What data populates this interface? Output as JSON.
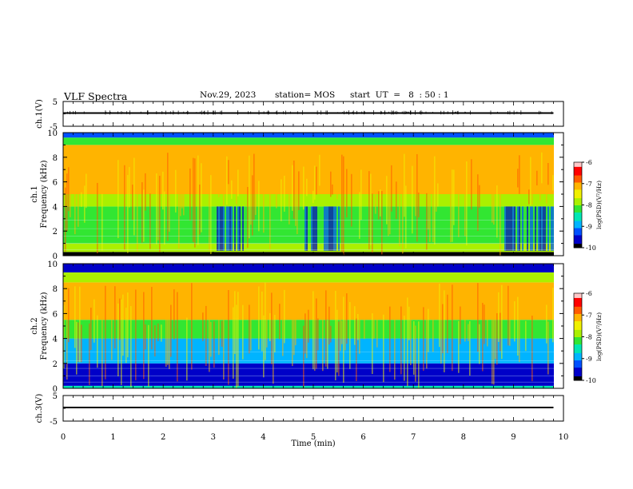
{
  "header": {
    "title": "VLF Spectra",
    "date": "Nov.29, 2023",
    "station": "station= MOS",
    "start": "start  UT  =   8  : 50 : 1"
  },
  "colors": {
    "black": "#000000",
    "colormap": [
      "#000000",
      "#0000c8",
      "#0050ff",
      "#00b4ff",
      "#00e6b4",
      "#32e632",
      "#aaf000",
      "#f0f000",
      "#ffb400",
      "#ff5a00",
      "#ff0000",
      "#ffc8c8",
      "#ffffff"
    ]
  },
  "chart_data": [
    {
      "type": "line",
      "ylabel": "ch.1(V)",
      "yticks": [
        "5",
        "-5"
      ],
      "ylim": [
        -5,
        5
      ],
      "series": [
        {
          "values_note_constant": 0,
          "x": [
            0,
            9.8
          ],
          "y": [
            0,
            0
          ]
        }
      ]
    },
    {
      "type": "heatmap",
      "ylabel": "ch.1\nFrequency (kHz)",
      "ylabel_lines": [
        "ch.1",
        "Frequency (kHz)"
      ],
      "yticks": [
        "0",
        "2",
        "4",
        "6",
        "8",
        "10"
      ],
      "ylim": [
        0,
        10
      ],
      "xlim": [
        0,
        9.8
      ],
      "colorbar": {
        "label": "log(PSD)(V²/Hz)",
        "ticks": [
          "-6",
          "-7",
          "-8",
          "-9",
          "-10"
        ],
        "range": [
          -10,
          -6
        ]
      },
      "bands_kHz": [
        [
          0,
          0.3,
          -9.8
        ],
        [
          0.3,
          1.0,
          -7.6
        ],
        [
          1.0,
          4.0,
          -8.1
        ],
        [
          4.0,
          5.0,
          -7.6
        ],
        [
          5.0,
          9.0,
          -6.8
        ],
        [
          9.0,
          9.6,
          -7.9
        ],
        [
          9.6,
          10.0,
          -9.3
        ]
      ],
      "quiet_segments_min": [
        [
          3.0,
          3.6
        ],
        [
          4.8,
          5.5
        ],
        [
          8.8,
          9.8
        ]
      ]
    },
    {
      "type": "heatmap",
      "ylabel": "ch.2\nFrequency (kHz)",
      "ylabel_lines": [
        "ch.2",
        "Frequency (kHz)"
      ],
      "yticks": [
        "0",
        "2",
        "4",
        "6",
        "8",
        "10"
      ],
      "ylim": [
        0,
        10
      ],
      "xlim": [
        0,
        9.8
      ],
      "colorbar": {
        "label": "log(PSD)(V²/Hz)",
        "ticks": [
          "-6",
          "-7",
          "-8",
          "-9",
          "-10"
        ],
        "range": [
          -10,
          -6
        ]
      },
      "bands_kHz": [
        [
          0,
          0.2,
          -8.5
        ],
        [
          0.2,
          2.0,
          -9.6
        ],
        [
          2.0,
          4.0,
          -9.0
        ],
        [
          4.0,
          5.5,
          -8.2
        ],
        [
          5.5,
          8.5,
          -6.8
        ],
        [
          8.5,
          9.3,
          -7.8
        ],
        [
          9.3,
          10.0,
          -9.5
        ]
      ],
      "quiet_segments_min": []
    },
    {
      "type": "line",
      "ylabel": "ch.3(V)",
      "yticks": [
        "5",
        "-5"
      ],
      "ylim": [
        -5,
        5
      ],
      "xlabel": "Time (min)",
      "xticks": [
        "0",
        "1",
        "2",
        "3",
        "4",
        "5",
        "6",
        "7",
        "8",
        "9",
        "10"
      ],
      "xlim": [
        0,
        10
      ],
      "series": [
        {
          "x": [
            0,
            9.8
          ],
          "y": [
            0,
            0
          ]
        }
      ]
    }
  ]
}
